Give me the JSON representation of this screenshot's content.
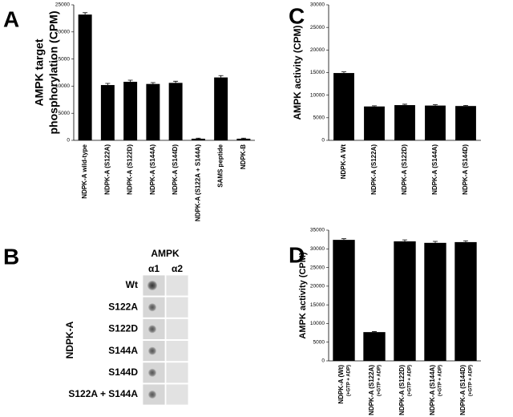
{
  "chart_data": [
    {
      "type": "bar",
      "panel_label": "A",
      "ylabel": [
        "AMPK target",
        "phosphorylation (CPM)"
      ],
      "categories": [
        "NDPK-A wild-type",
        "NDPK-A (S122A)",
        "NDPK-A (S122D)",
        "NDPK-A (S144A)",
        "NDPK-A (S144D)",
        "NDPK-A (S122A + S144A)",
        "SAMS peptide",
        "NDPK-B"
      ],
      "values": [
        23200,
        10200,
        10800,
        10400,
        10600,
        300,
        11600,
        300
      ],
      "errors": [
        350,
        300,
        300,
        250,
        300,
        100,
        350,
        100
      ],
      "color": "#000000",
      "ylim": [
        0,
        25000
      ],
      "yticks": [
        0,
        5000,
        10000,
        15000,
        20000,
        25000
      ]
    },
    {
      "type": "bar",
      "panel_label": "C",
      "ylabel": [
        "AMPK activity (CPM)"
      ],
      "categories": [
        "NDPK-A Wt",
        "NDPK-A (S122A)",
        "NDPK-A (S122D)",
        "NDPK-A (S144A)",
        "NDPK-A (S144D)"
      ],
      "values": [
        14900,
        7500,
        7800,
        7700,
        7600
      ],
      "errors": [
        250,
        150,
        200,
        200,
        150
      ],
      "color": "#000000",
      "ylim": [
        0,
        30000
      ],
      "yticks": [
        0,
        5000,
        10000,
        15000,
        20000,
        25000,
        30000
      ]
    },
    {
      "type": "bar",
      "panel_label": "D",
      "ylabel": [
        "AMPK activity (CPM)"
      ],
      "categories": [
        "NDPK-A (Wt)",
        "NDPK-A (S122A)",
        "NDPK-A (S122D)",
        "NDPK-A (S144A)",
        "NDPK-A (S144D)"
      ],
      "category_sublabels": [
        "(+GTP + ADP)",
        "(+GTP + ADP)",
        "(+GTP + ADP)",
        "(+GTP + ADP)",
        "(+GTP + ADP)"
      ],
      "values": [
        32400,
        7700,
        32000,
        31600,
        31800
      ],
      "errors": [
        300,
        150,
        400,
        400,
        350
      ],
      "color": "#000000",
      "ylim": [
        0,
        35000
      ],
      "yticks": [
        0,
        5000,
        10000,
        15000,
        20000,
        25000,
        30000,
        35000
      ]
    }
  ],
  "blot": {
    "panel_label": "B",
    "title": "AMPK",
    "columns": [
      "α1",
      "α2"
    ],
    "group_label": "NDPK-A",
    "rows": [
      "Wt",
      "S122A",
      "S122D",
      "S144A",
      "S144D",
      "S122A + S144A"
    ]
  }
}
